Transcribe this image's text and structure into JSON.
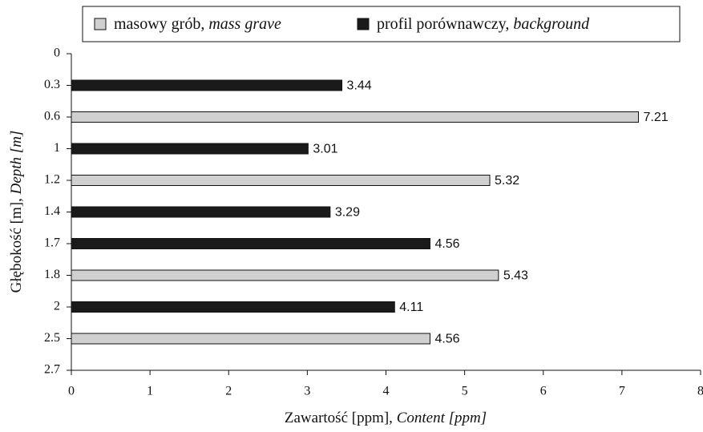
{
  "chart_data": {
    "type": "hbar",
    "categories": [
      "0",
      "0.3",
      "0.6",
      "1",
      "1.2",
      "1.4",
      "1.7",
      "1.8",
      "2",
      "2.5",
      "2.7"
    ],
    "series": [
      {
        "name": "masowy grób, mass grave",
        "color": "#d0d0d0",
        "values": [
          null,
          null,
          7.21,
          null,
          5.32,
          null,
          null,
          5.43,
          null,
          4.56,
          null
        ]
      },
      {
        "name": "profil porównawczy, background",
        "color": "#1a1a1a",
        "values": [
          null,
          3.44,
          null,
          3.01,
          null,
          3.29,
          4.56,
          null,
          4.11,
          null,
          null
        ]
      }
    ],
    "xlabel": "Zawartość [ppm], Content [ppm]",
    "ylabel": "Głębokość [m], Depth [m]",
    "xlim": [
      0,
      8
    ],
    "xticks": [
      0,
      1,
      2,
      3,
      4,
      5,
      6,
      7,
      8
    ],
    "legend": "top"
  }
}
